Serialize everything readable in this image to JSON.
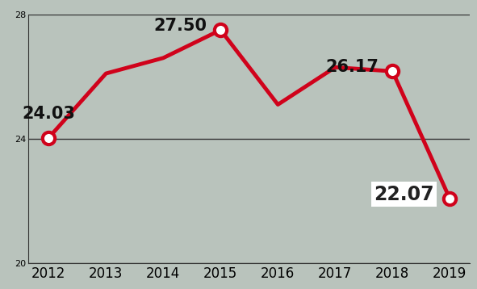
{
  "chart_data": {
    "type": "line",
    "categories": [
      "2012",
      "2013",
      "2014",
      "2015",
      "2016",
      "2017",
      "2018",
      "2019"
    ],
    "values": [
      24.03,
      26.1,
      26.6,
      27.5,
      25.1,
      26.3,
      26.17,
      22.07
    ],
    "value_labels": [
      "24.03",
      null,
      null,
      "27.50",
      null,
      null,
      "26.17",
      "22.07"
    ],
    "color": "#d0021b",
    "marker": "circle",
    "ylim": [
      20,
      28
    ],
    "yticks": [
      20,
      24,
      28
    ],
    "grid": true,
    "data_labels": true
  }
}
